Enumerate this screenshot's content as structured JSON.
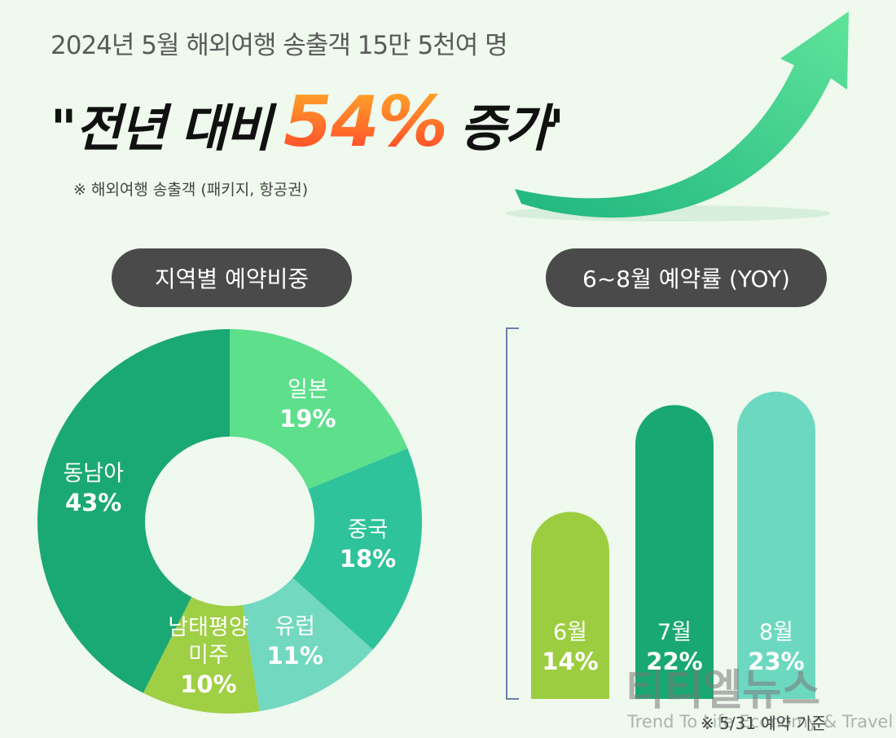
{
  "header": {
    "subtitle": "2024년 5월 해외여행 송출객 15만 5천여 명",
    "headline_start": "\"전년 대비",
    "headline_value": "54%",
    "headline_end": "증가'",
    "note": "※ 해외여행 송출객 (패키지, 항공권)"
  },
  "chart_data": [
    {
      "type": "pie",
      "title": "지역별 예약비중",
      "categories": [
        "일본",
        "중국",
        "유럽",
        "남태평양 미주",
        "동남아"
      ],
      "values": [
        19,
        18,
        11,
        10,
        43
      ],
      "value_labels": [
        "19%",
        "18%",
        "11%",
        "10%",
        "43%"
      ],
      "colors": [
        "#5ddf8c",
        "#2ec39a",
        "#72d8c0",
        "#9fcf44",
        "#1aa874"
      ],
      "donut": true
    },
    {
      "type": "bar",
      "title": "6~8월 예약률 (YOY)",
      "categories": [
        "6월",
        "7월",
        "8월"
      ],
      "values": [
        14,
        22,
        23
      ],
      "value_labels": [
        "14%",
        "22%",
        "23%"
      ],
      "colors": [
        "#9ccd40",
        "#19a873",
        "#6dd8c0"
      ],
      "note": "※ 5/31 예약 기준"
    }
  ],
  "watermark": {
    "logo": "티티엘뉴스",
    "tagline": "Trend To Life Economy & Travel"
  }
}
